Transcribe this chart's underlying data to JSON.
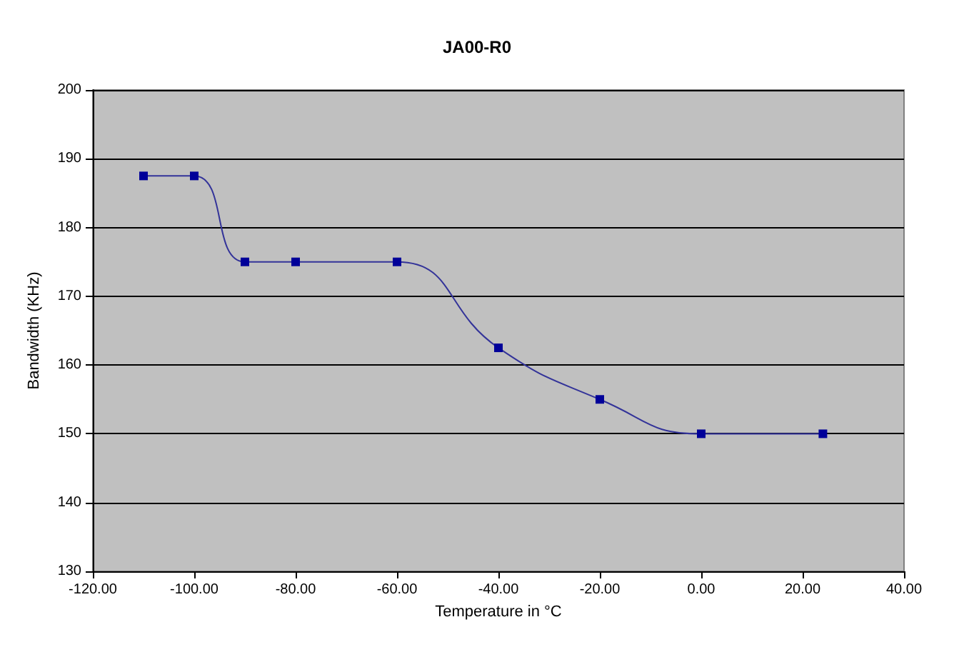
{
  "chart_data": {
    "type": "line",
    "title": "JA00-R0",
    "xlabel": "Temperature in °C",
    "ylabel": "Bandwidth (KHz)",
    "x": [
      -110,
      -100,
      -90,
      -80,
      -60,
      -40,
      -20,
      0,
      24
    ],
    "series": [
      {
        "color": "#333399",
        "values": [
          187.5,
          187.5,
          175,
          175,
          175,
          162.5,
          155,
          150,
          150
        ]
      }
    ],
    "xlim": [
      -120,
      40
    ],
    "xticks": [
      {
        "value": -120,
        "label": "-120.00"
      },
      {
        "value": -100,
        "label": "-100.00"
      },
      {
        "value": -80,
        "label": "-80.00"
      },
      {
        "value": -60,
        "label": "-60.00"
      },
      {
        "value": -40,
        "label": "-40.00"
      },
      {
        "value": -20,
        "label": "-20.00"
      },
      {
        "value": 0,
        "label": "0.00"
      },
      {
        "value": 20,
        "label": "20.00"
      },
      {
        "value": 40,
        "label": "40.00"
      }
    ],
    "ylim": [
      130,
      200
    ],
    "yticks": [
      130,
      140,
      150,
      160,
      170,
      180,
      190,
      200
    ],
    "grid": "y",
    "marker": "square",
    "line_style": "solid"
  }
}
